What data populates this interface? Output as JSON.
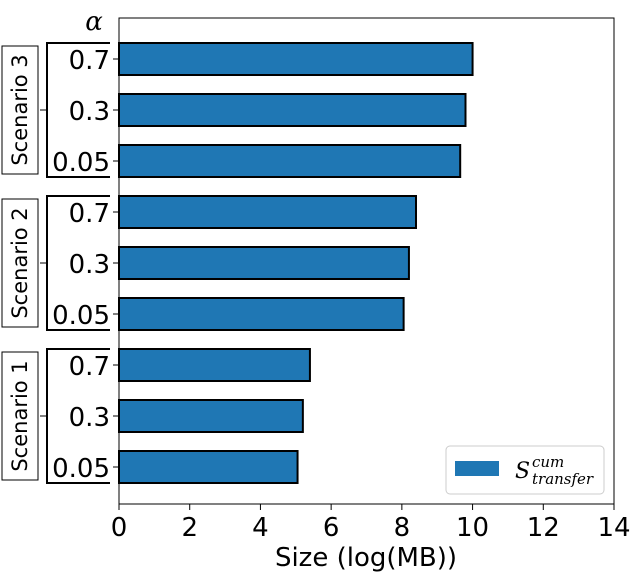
{
  "chart_data": {
    "type": "bar",
    "orientation": "horizontal",
    "xlabel": "Size (log(MB))",
    "ylabel": "α",
    "xlim": [
      0,
      14
    ],
    "xticks": [
      "0",
      "2",
      "4",
      "6",
      "8",
      "10",
      "12",
      "14"
    ],
    "grid": false,
    "legend_position": "bottom-right",
    "bar_color": "#1f77b4",
    "series": [
      {
        "legend_main": "S",
        "legend_sup": "cum",
        "legend_sub": "transfer"
      }
    ],
    "groups": [
      {
        "name": "Scenario 3",
        "categories": [
          "0.7",
          "0.3",
          "0.05"
        ],
        "values": [
          10.0,
          9.8,
          9.65
        ]
      },
      {
        "name": "Scenario 2",
        "categories": [
          "0.7",
          "0.3",
          "0.05"
        ],
        "values": [
          8.4,
          8.2,
          8.05
        ]
      },
      {
        "name": "Scenario 1",
        "categories": [
          "0.7",
          "0.3",
          "0.05"
        ],
        "values": [
          5.4,
          5.2,
          5.05
        ]
      }
    ]
  }
}
